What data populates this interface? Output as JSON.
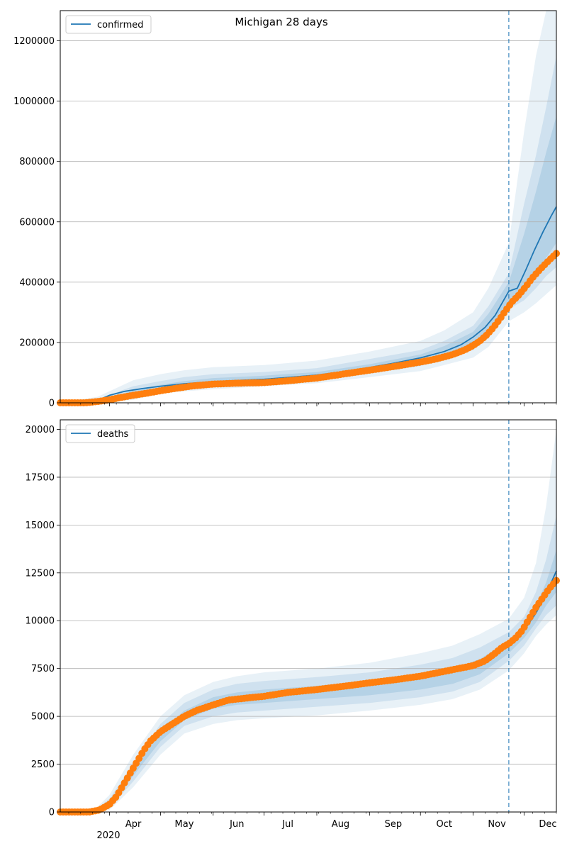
{
  "figure": {
    "title": "Michigan 28 days",
    "year_label": "2020",
    "month_labels": [
      "Apr",
      "May",
      "Jun",
      "Jul",
      "Aug",
      "Sep",
      "Oct",
      "Nov",
      "Dec"
    ]
  },
  "colors": {
    "model": "#1f77b4",
    "observed": "#ff7f0e",
    "grid": "#b0b0b0"
  },
  "chart_data": [
    {
      "type": "line",
      "panel": "confirmed",
      "legend": [
        "confirmed"
      ],
      "legend_position": "upper-left",
      "ylim": [
        0,
        1300000
      ],
      "yticks": [
        "0",
        "200000",
        "400000",
        "600000",
        "800000",
        "1000000",
        "1200000"
      ],
      "ytick_values": [
        0,
        200000,
        400000,
        600000,
        800000,
        1000000,
        1200000
      ],
      "grid": "horizontal",
      "xrange": [
        "2020-03-03",
        "2020-12-20"
      ],
      "forecast_start": "2020-11-22",
      "series": [
        {
          "name": "confirmed",
          "kind": "model-median",
          "x": [
            "2020-03-03",
            "2020-03-20",
            "2020-03-25",
            "2020-04-01",
            "2020-04-10",
            "2020-04-20",
            "2020-05-01",
            "2020-05-15",
            "2020-06-01",
            "2020-06-15",
            "2020-07-01",
            "2020-07-15",
            "2020-08-01",
            "2020-08-15",
            "2020-09-01",
            "2020-09-15",
            "2020-10-01",
            "2020-10-15",
            "2020-10-25",
            "2020-11-01",
            "2020-11-08",
            "2020-11-14",
            "2020-11-18",
            "2020-11-22",
            "2020-11-27",
            "2020-12-02",
            "2020-12-07",
            "2020-12-12",
            "2020-12-17",
            "2020-12-20"
          ],
          "y": [
            0,
            2000,
            8000,
            25000,
            38000,
            47000,
            55000,
            63000,
            70000,
            74000,
            78000,
            84000,
            92000,
            102000,
            117000,
            131000,
            149000,
            170000,
            193000,
            218000,
            250000,
            290000,
            330000,
            370000,
            380000,
            440000,
            505000,
            565000,
            620000,
            650000
          ]
        },
        {
          "name": "confirmed",
          "kind": "observed",
          "x": [
            "2020-03-03",
            "2020-03-10",
            "2020-03-18",
            "2020-03-22",
            "2020-03-26",
            "2020-04-01",
            "2020-04-08",
            "2020-04-15",
            "2020-04-22",
            "2020-05-01",
            "2020-05-10",
            "2020-05-20",
            "2020-06-01",
            "2020-06-15",
            "2020-07-01",
            "2020-07-15",
            "2020-08-01",
            "2020-08-15",
            "2020-09-01",
            "2020-09-15",
            "2020-10-01",
            "2020-10-10",
            "2020-10-20",
            "2020-10-27",
            "2020-11-01",
            "2020-11-05",
            "2020-11-09",
            "2020-11-13",
            "2020-11-17",
            "2020-11-20",
            "2020-11-24",
            "2020-11-28",
            "2020-12-02",
            "2020-12-06",
            "2020-12-10",
            "2020-12-14",
            "2020-12-18",
            "2020-12-20"
          ],
          "y": [
            0,
            0,
            100,
            2500,
            5000,
            10000,
            18000,
            25000,
            31000,
            40000,
            48000,
            56000,
            62000,
            65000,
            67000,
            73000,
            82000,
            94000,
            108000,
            120000,
            135000,
            145000,
            160000,
            175000,
            190000,
            205000,
            225000,
            250000,
            280000,
            305000,
            335000,
            358000,
            385000,
            415000,
            440000,
            463000,
            485000,
            495000
          ]
        }
      ],
      "bands": {
        "x": [
          "2020-03-03",
          "2020-03-25",
          "2020-04-15",
          "2020-05-01",
          "2020-05-15",
          "2020-06-01",
          "2020-07-01",
          "2020-08-01",
          "2020-09-01",
          "2020-10-01",
          "2020-10-15",
          "2020-11-01",
          "2020-11-10",
          "2020-11-22",
          "2020-12-01",
          "2020-12-08",
          "2020-12-14",
          "2020-12-20"
        ],
        "outer_upper": [
          0,
          20000,
          75000,
          95000,
          108000,
          118000,
          125000,
          140000,
          170000,
          205000,
          240000,
          300000,
          380000,
          530000,
          900000,
          1150000,
          1300000,
          1300000
        ],
        "outer_lower": [
          0,
          0,
          10000,
          30000,
          38000,
          45000,
          55000,
          65000,
          85000,
          105000,
          125000,
          150000,
          185000,
          270000,
          300000,
          330000,
          360000,
          390000
        ],
        "inner_upper": [
          0,
          12000,
          55000,
          72000,
          85000,
          95000,
          102000,
          115000,
          145000,
          175000,
          205000,
          255000,
          320000,
          430000,
          660000,
          820000,
          980000,
          1150000
        ],
        "inner_lower": [
          0,
          1000,
          20000,
          40000,
          50000,
          57000,
          66000,
          76000,
          97000,
          122000,
          145000,
          175000,
          215000,
          310000,
          340000,
          380000,
          420000,
          450000
        ],
        "core_upper": [
          0,
          8000,
          40000,
          60000,
          72000,
          82000,
          90000,
          102000,
          128000,
          160000,
          188000,
          235000,
          295000,
          400000,
          560000,
          700000,
          830000,
          950000
        ],
        "core_lower": [
          0,
          2000,
          28000,
          48000,
          58000,
          65000,
          72000,
          83000,
          104000,
          132000,
          155000,
          190000,
          232000,
          335000,
          360000,
          420000,
          480000,
          530000
        ]
      }
    },
    {
      "type": "line",
      "panel": "deaths",
      "legend": [
        "deaths"
      ],
      "legend_position": "upper-left",
      "ylim": [
        0,
        20500
      ],
      "yticks": [
        "0",
        "2500",
        "5000",
        "7500",
        "10000",
        "12500",
        "15000",
        "17500",
        "20000"
      ],
      "ytick_values": [
        0,
        2500,
        5000,
        7500,
        10000,
        12500,
        15000,
        17500,
        20000
      ],
      "grid": "horizontal",
      "xrange": [
        "2020-03-03",
        "2020-12-20"
      ],
      "forecast_start": "2020-11-22",
      "series": [
        {
          "name": "deaths",
          "kind": "model-median",
          "x": [
            "2020-03-03",
            "2020-03-22",
            "2020-03-28",
            "2020-04-05",
            "2020-04-12",
            "2020-04-20",
            "2020-04-28",
            "2020-05-05",
            "2020-05-15",
            "2020-05-25",
            "2020-06-05",
            "2020-06-15",
            "2020-07-01",
            "2020-07-15",
            "2020-08-01",
            "2020-08-15",
            "2020-09-01",
            "2020-09-15",
            "2020-10-01",
            "2020-10-15",
            "2020-11-01",
            "2020-11-10",
            "2020-11-22",
            "2020-12-01",
            "2020-12-08",
            "2020-12-14",
            "2020-12-20"
          ],
          "y": [
            0,
            0,
            100,
            700,
            1800,
            3000,
            4100,
            4600,
            5100,
            5450,
            5750,
            5900,
            6050,
            6200,
            6350,
            6500,
            6700,
            6850,
            7050,
            7300,
            7650,
            8000,
            8800,
            9500,
            10400,
            11400,
            12600
          ]
        },
        {
          "name": "deaths",
          "kind": "observed",
          "x": [
            "2020-03-03",
            "2020-03-12",
            "2020-03-20",
            "2020-03-26",
            "2020-04-01",
            "2020-04-05",
            "2020-04-09",
            "2020-04-13",
            "2020-04-17",
            "2020-04-21",
            "2020-04-25",
            "2020-05-01",
            "2020-05-08",
            "2020-05-15",
            "2020-05-22",
            "2020-06-01",
            "2020-06-10",
            "2020-06-20",
            "2020-07-01",
            "2020-07-15",
            "2020-08-01",
            "2020-08-15",
            "2020-09-01",
            "2020-09-15",
            "2020-10-01",
            "2020-10-15",
            "2020-11-01",
            "2020-11-08",
            "2020-11-14",
            "2020-11-18",
            "2020-11-22",
            "2020-11-26",
            "2020-11-30",
            "2020-12-04",
            "2020-12-08",
            "2020-12-12",
            "2020-12-16",
            "2020-12-20"
          ],
          "y": [
            0,
            0,
            0,
            100,
            400,
            800,
            1400,
            2000,
            2600,
            3200,
            3700,
            4200,
            4600,
            5000,
            5300,
            5600,
            5850,
            5950,
            6050,
            6250,
            6400,
            6550,
            6750,
            6900,
            7100,
            7350,
            7650,
            7900,
            8300,
            8600,
            8800,
            9100,
            9500,
            10100,
            10700,
            11200,
            11700,
            12100
          ]
        }
      ],
      "bands": {
        "x": [
          "2020-03-03",
          "2020-03-22",
          "2020-04-01",
          "2020-04-15",
          "2020-05-01",
          "2020-05-15",
          "2020-06-01",
          "2020-06-15",
          "2020-07-01",
          "2020-08-01",
          "2020-09-01",
          "2020-10-01",
          "2020-10-20",
          "2020-11-05",
          "2020-11-22",
          "2020-12-01",
          "2020-12-08",
          "2020-12-14",
          "2020-12-20"
        ],
        "outer_upper": [
          0,
          0,
          900,
          3000,
          5000,
          6100,
          6800,
          7100,
          7300,
          7500,
          7800,
          8300,
          8700,
          9300,
          10100,
          11200,
          13000,
          16000,
          20000
        ],
        "outer_lower": [
          0,
          0,
          100,
          1300,
          3000,
          4100,
          4600,
          4800,
          4900,
          5050,
          5300,
          5600,
          5900,
          6400,
          7400,
          8300,
          9200,
          9800,
          10300
        ],
        "inner_upper": [
          0,
          0,
          700,
          2500,
          4600,
          5700,
          6400,
          6700,
          6850,
          7050,
          7300,
          7700,
          8050,
          8600,
          9400,
          10200,
          11500,
          13200,
          15500
        ],
        "inner_lower": [
          0,
          0,
          200,
          1600,
          3400,
          4500,
          5000,
          5200,
          5300,
          5500,
          5700,
          6000,
          6300,
          6800,
          7900,
          8700,
          9600,
          10300,
          10800
        ],
        "core_upper": [
          0,
          0,
          500,
          2100,
          4200,
          5300,
          6000,
          6250,
          6400,
          6600,
          6850,
          7200,
          7500,
          8000,
          8950,
          9800,
          10800,
          12000,
          13700
        ],
        "core_lower": [
          0,
          0,
          300,
          1900,
          3700,
          4800,
          5400,
          5600,
          5700,
          5900,
          6100,
          6400,
          6700,
          7200,
          8300,
          9100,
          9900,
          10800,
          11500
        ]
      }
    }
  ]
}
